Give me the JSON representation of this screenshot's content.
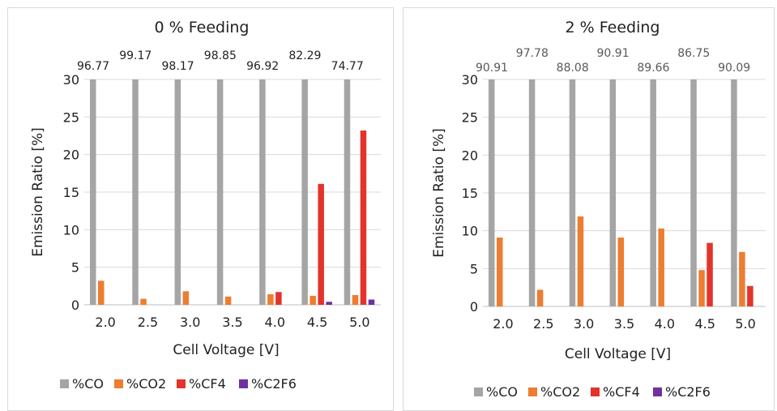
{
  "chart_data": [
    {
      "type": "bar",
      "title": "0 % Feeding",
      "xlabel": "Cell Voltage [V]",
      "ylabel": "Emission Ratio [%]",
      "ylim": [
        0,
        30
      ],
      "yticks": [
        "0",
        "5",
        "10",
        "15",
        "20",
        "25",
        "30"
      ],
      "categories": [
        "2.0",
        "2.5",
        "3.0",
        "3.5",
        "4.0",
        "4.5",
        "5.0"
      ],
      "legend_position": "bottom",
      "grid": true,
      "series": [
        {
          "name": "%CO",
          "color": "#a5a5a5",
          "values": [
            96.77,
            99.17,
            98.17,
            98.85,
            96.92,
            82.29,
            74.77
          ]
        },
        {
          "name": "%CO2",
          "color": "#ed7d31",
          "values": [
            3.2,
            0.8,
            1.8,
            1.1,
            1.4,
            1.2,
            1.3
          ]
        },
        {
          "name": "%CF4",
          "color": "#e3342b",
          "values": [
            0,
            0,
            0,
            0,
            1.7,
            16.1,
            23.2
          ]
        },
        {
          "name": "%C2F6",
          "color": "#7030a0",
          "values": [
            0,
            0,
            0,
            0,
            0,
            0.4,
            0.7
          ]
        }
      ],
      "data_labels": [
        "96.77",
        "99.17",
        "98.17",
        "98.85",
        "96.92",
        "82.29",
        "74.77"
      ]
    },
    {
      "type": "bar",
      "title": "2 % Feeding",
      "xlabel": "Cell Voltage [V]",
      "ylabel": "Emission Ratio [%]",
      "ylim": [
        0,
        30
      ],
      "yticks": [
        "0",
        "5",
        "10",
        "15",
        "20",
        "25",
        "30"
      ],
      "categories": [
        "2.0",
        "2.5",
        "3.0",
        "3.5",
        "4.0",
        "4.5",
        "5.0"
      ],
      "legend_position": "bottom",
      "grid": true,
      "series": [
        {
          "name": "%CO",
          "color": "#a5a5a5",
          "values": [
            90.91,
            97.78,
            88.08,
            90.91,
            89.66,
            86.75,
            90.09
          ]
        },
        {
          "name": "%CO2",
          "color": "#ed7d31",
          "values": [
            9.1,
            2.2,
            11.9,
            9.1,
            10.3,
            4.8,
            7.2
          ]
        },
        {
          "name": "%CF4",
          "color": "#e3342b",
          "values": [
            0,
            0,
            0,
            0,
            0,
            8.4,
            2.7
          ]
        },
        {
          "name": "%C2F6",
          "color": "#7030a0",
          "values": [
            0,
            0,
            0,
            0,
            0,
            0,
            0
          ]
        }
      ],
      "data_labels": [
        "90.91",
        "97.78",
        "88.08",
        "90.91",
        "89.66",
        "86.75",
        "90.09"
      ]
    }
  ]
}
